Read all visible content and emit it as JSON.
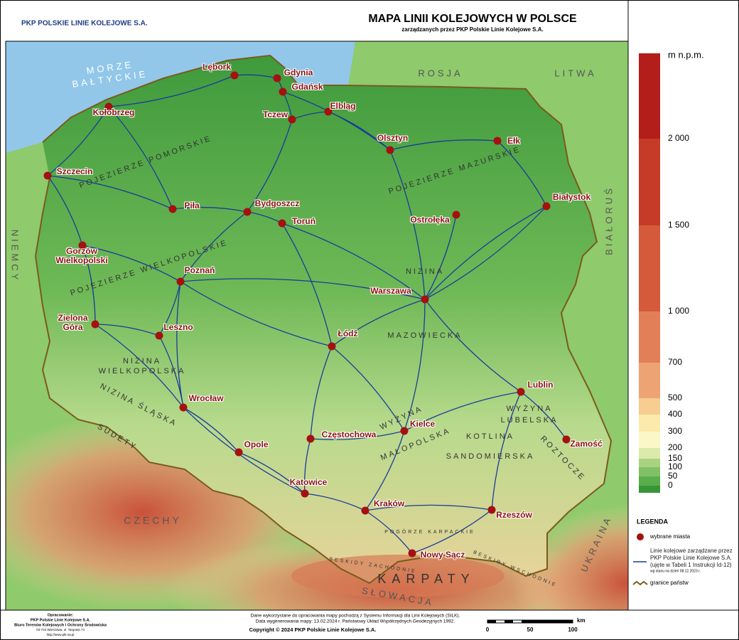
{
  "header": {
    "logo": "PKP POLSKIE LINIE KOLEJOWE S.A.",
    "title": "MAPA LINII KOLEJOWYCH W POLSCE",
    "subtitle": "zarządzanych przez PKP Polskie Linie Kolejowe S.A."
  },
  "map": {
    "cities": [
      "Lębork",
      "Gdynia",
      "Gdańsk",
      "Kołobrzeg",
      "Tczew",
      "Elbląg",
      "Olsztyn",
      "Ełk",
      "Szczecin",
      "Białystok",
      "Piła",
      "Bydgoszcz",
      "Toruń",
      "Ostrołęka",
      "Gorzów Wielkopolski",
      "Poznań",
      "Warszawa",
      "Zielona Góra",
      "Leszno",
      "Łódź",
      "Lublin",
      "Wrocław",
      "Kielce",
      "Częstochowa",
      "Opole",
      "Zamość",
      "Katowice",
      "Kraków",
      "Rzeszów",
      "Nowy Sącz"
    ],
    "countries": [
      "MORZE",
      "BAŁTYCKIE",
      "ROSJA",
      "LITWA",
      "BIAŁORUŚ",
      "NIEMCY",
      "CZECHY",
      "SŁOWACJA",
      "UKRAINA"
    ],
    "regions": [
      "POJEZIERZE POMORSKIE",
      "POJEZIERZE MAZURSKIE",
      "POJEZIERZE WIELKOPOLSKIE",
      "NIZINA",
      "MAZOWIECKA",
      "NIZINA",
      "WIELKOPOLSKA",
      "NIZINA ŚLĄSKA",
      "SUDETY",
      "WYŻYNA",
      "MAŁOPOLSKA",
      "WYŻYNA",
      "LUBELSKA",
      "KOTLINA",
      "SANDOMIERSKA",
      "ROZTOCZE",
      "POGÓRZE KARPACKIE",
      "BESKIDY ZACHODNIE",
      "BESKIDY WSCHODNIE",
      "KARPATY"
    ]
  },
  "legend": {
    "elevation_unit": "m n.p.m.",
    "elevation_labels": [
      "2 000",
      "1 500",
      "1 000",
      "700",
      "500",
      "400",
      "300",
      "200",
      "150",
      "100",
      "50",
      "0"
    ],
    "elevation_colors": [
      "#b31d1a",
      "#c63b27",
      "#d45a3b",
      "#e27f59",
      "#eea374",
      "#f7cd92",
      "#fbeaac",
      "#fbf7c6",
      "#dbeaaa",
      "#a9d381",
      "#80c165",
      "#59ad4c",
      "#379537"
    ],
    "title": "LEGENDA",
    "cities": "wybrane miasta",
    "railways": "Linie kolejowe zarządzane przez PKP Polskie Linie Kolejowe S.A. (ujęte w Tabeli 1 Instrukcji Id-12)",
    "railways_note": "wg stanu na dzień 08.12.2023 r.",
    "borders": "granice państw"
  },
  "footer": {
    "author": [
      "Opracowanie:",
      "PKP Polskie Linie Kolejowe S.A.",
      "Biuro Terenów Kolejowych i Ochrony Środowiska",
      "03-734 Warszawa, ul. Targowa 74",
      "http://www.plk-sa.pl"
    ],
    "notes": [
      "Dane wykorzystane do opracowania mapy pochodzą z Systemu Informacji dla Linii Kolejowych (SILK).",
      "Data wygenerowania mapy: 13.02.2024 r. Państwowy Układ Współrzędnych Geodezyjnych 1992."
    ],
    "copyright": "Copyright © 2024 PKP Polskie Linie Kolejowe S.A.",
    "scale": {
      "unit": "km",
      "labels": [
        "0",
        "50",
        "100"
      ]
    }
  }
}
